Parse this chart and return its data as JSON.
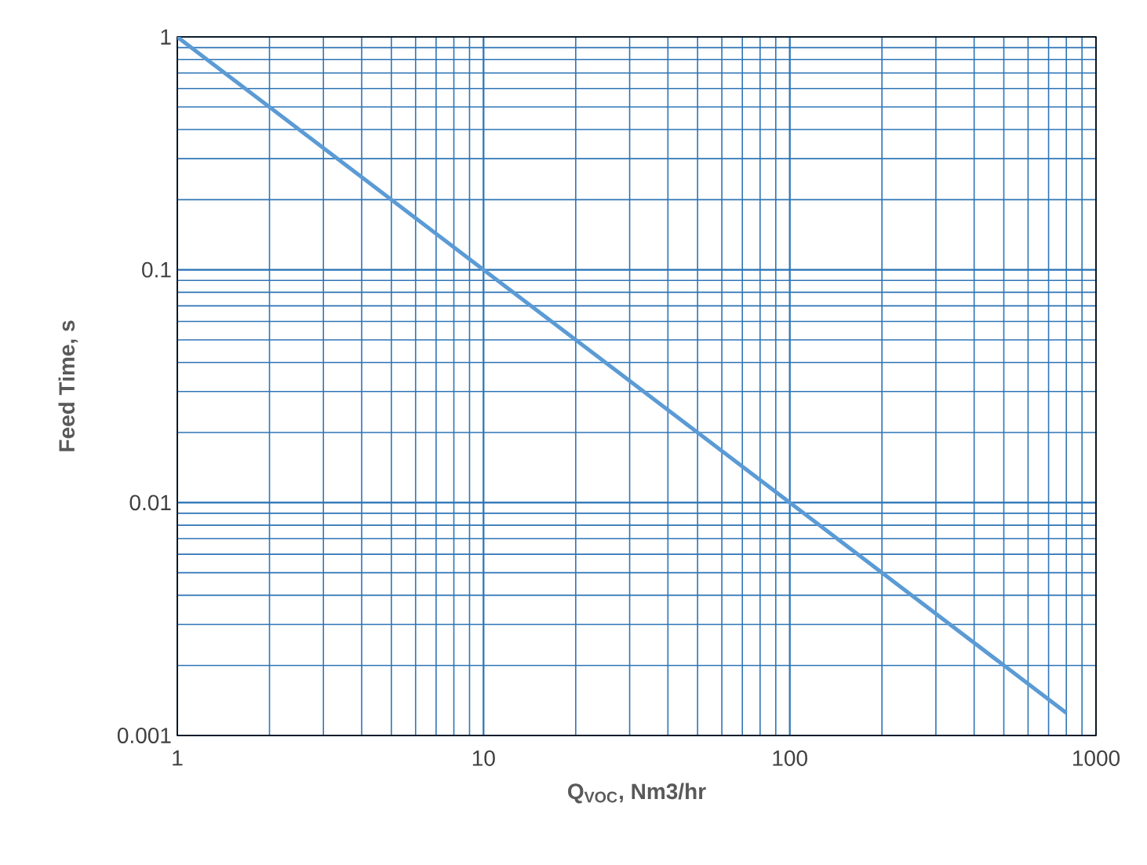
{
  "chart_data": {
    "type": "line",
    "xlabel": "Q$_{VOC}$, Nm3/hr",
    "ylabel": "Feed Time, s",
    "x": [
      1,
      10,
      100,
      800
    ],
    "series": [
      {
        "color": "#5b9bd5",
        "values": [
          1,
          0.1,
          0.01,
          0.00125
        ]
      }
    ],
    "xlim": [
      1,
      1000
    ],
    "ylim": [
      0.001,
      1
    ],
    "xticks": [
      1,
      10,
      100,
      1000
    ],
    "yticks": [
      0.001,
      0.01,
      0.1,
      1
    ],
    "log": "xy",
    "grid": true,
    "marker": "none",
    "line_style": "solid"
  }
}
